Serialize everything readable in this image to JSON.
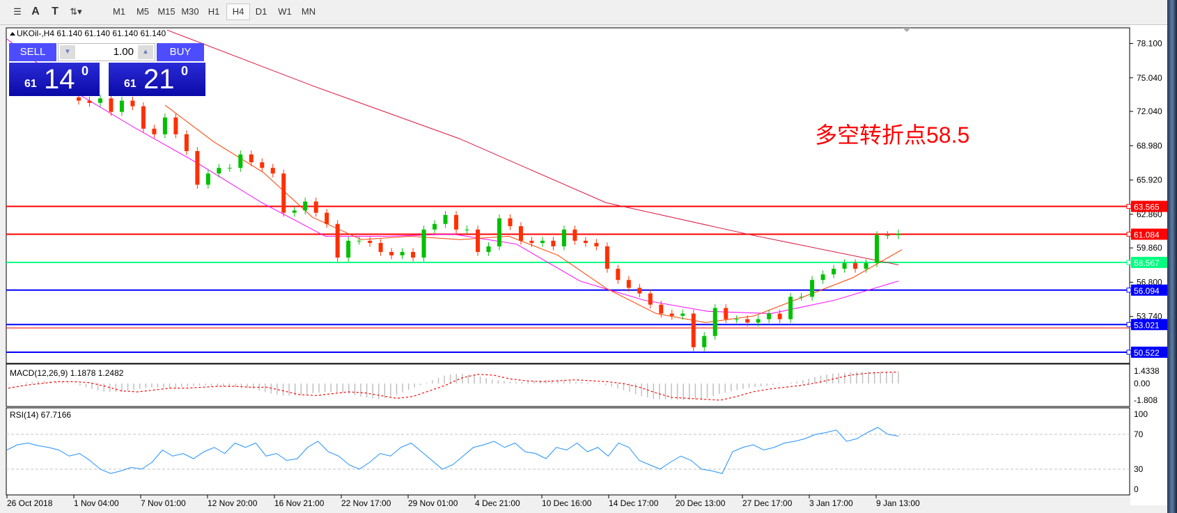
{
  "toolbar": {
    "tools": [
      {
        "icon": "fibo-icon",
        "label": ""
      },
      {
        "icon": "text-icon",
        "label": "A"
      },
      {
        "icon": "text-label-icon",
        "label": "T"
      },
      {
        "icon": "arrows-icon",
        "label": ""
      }
    ],
    "timeframes": [
      "M1",
      "M5",
      "M15",
      "M30",
      "H1",
      "H4",
      "D1",
      "W1",
      "MN"
    ],
    "active_timeframe": "H4"
  },
  "chart": {
    "header": "UKOil-,H4  61.140 61.140 61.140 61.140",
    "annotation": "多空转折点58.5",
    "annotation_color": "#ff0000",
    "trade": {
      "sell_label": "SELL",
      "buy_label": "BUY",
      "lot": "1.00",
      "sell_small": "61",
      "sell_big": "14",
      "sell_sup": "0",
      "buy_small": "61",
      "buy_big": "21",
      "buy_sup": "0"
    }
  },
  "chart_data": {
    "type": "candlestick",
    "symbol": "UKOil-",
    "timeframe": "H4",
    "ylim": [
      50.522,
      79.3
    ],
    "y_ticks": [
      "78.100",
      "75.040",
      "72.040",
      "68.980",
      "65.920",
      "62.860",
      "59.860",
      "56.800",
      "53.740"
    ],
    "x_ticks": [
      "26 Oct 2018",
      "1 Nov 04:00",
      "7 Nov 01:00",
      "12 Nov 20:00",
      "16 Nov 21:00",
      "22 Nov 17:00",
      "29 Nov 01:00",
      "4 Dec 21:00",
      "10 Dec 16:00",
      "14 Dec 17:00",
      "20 Dec 13:00",
      "27 Dec 17:00",
      "3 Jan 17:00",
      "9 Jan 13:00"
    ],
    "closes": [
      73.0,
      72.8,
      73.2,
      72.0,
      73.0,
      72.5,
      70.5,
      70.0,
      71.5,
      70.0,
      68.5,
      65.5,
      66.5,
      67.0,
      67.0,
      68.2,
      67.5,
      67.0,
      66.5,
      63.0,
      63.2,
      64.0,
      63.0,
      62.0,
      59.0,
      60.5,
      60.5,
      60.3,
      59.5,
      59.2,
      59.5,
      59.0,
      61.5,
      62.0,
      62.8,
      61.5,
      61.5,
      59.5,
      60.0,
      62.5,
      61.8,
      60.5,
      60.3,
      60.5,
      60.0,
      61.5,
      60.5,
      60.3,
      60.0,
      58.0,
      57.0,
      56.3,
      55.8,
      54.8,
      54.0,
      53.8,
      54.0,
      51.0,
      52.0,
      54.5,
      53.5,
      53.5,
      53.2,
      53.5,
      54.0,
      53.5,
      55.5,
      55.5,
      57.0,
      57.5,
      58.0,
      58.5,
      58.0,
      58.5,
      61.0,
      61.0,
      61.14
    ],
    "ma_slow": [
      79.3,
      74.3,
      69.6,
      63.9,
      61.0,
      58.35
    ],
    "ma_mid": [
      78.5,
      74.0,
      70.6,
      67.4,
      63.9,
      60.9,
      60.9,
      61.1,
      60.2,
      56.9,
      55.2,
      54.2,
      54.0,
      55.2,
      56.9
    ],
    "ma_fast": [
      72.6,
      69.3,
      66.6,
      62.6,
      60.6,
      60.9,
      60.6,
      60.9,
      59.2,
      56.2,
      54.0,
      53.2,
      53.8,
      55.5,
      57.2,
      59.7
    ],
    "levels": [
      {
        "value": 63.565,
        "label": "63.565",
        "color": "#ff0000"
      },
      {
        "value": 61.084,
        "label": "61.084",
        "color": "#ff0000"
      },
      {
        "value": 58.567,
        "label": "58.567",
        "color": "#00ff7f"
      },
      {
        "value": 56.094,
        "label": "56.094",
        "color": "#0000ff"
      },
      {
        "value": 53.021,
        "label": "53.021",
        "color": "#0000ff"
      },
      {
        "value": 52.72,
        "label": "",
        "color": "#ff0000"
      },
      {
        "value": 50.522,
        "label": "50.522",
        "color": "#0000ff"
      }
    ],
    "colors": {
      "bull": "#00c000",
      "bear": "#ff3000",
      "ma_fast": "#ff4000",
      "ma_mid": "#ff00ff",
      "ma_slow": "#dc143c"
    },
    "macd": {
      "label": "MACD(12,26,9) 1.1878 1.2482",
      "ticks": [
        "1.4338",
        "0.00",
        "-1.808"
      ],
      "main": [
        -0.1,
        0.1,
        0.3,
        0.2,
        0.0,
        -0.5,
        -0.9,
        -0.9,
        -0.6,
        -0.4,
        -0.5,
        -0.3,
        -0.2,
        -0.3,
        -0.4,
        -0.5,
        -1.0,
        -1.3,
        -1.3,
        -1.0,
        -0.9,
        -1.1,
        -1.5,
        -1.7,
        -1.2,
        -0.5,
        0.2,
        0.9,
        1.1,
        0.8,
        0.4,
        0.2,
        0.2,
        0.4,
        0.4,
        0.2,
        0.1,
        -0.2,
        -0.7,
        -1.3,
        -1.7,
        -1.7,
        -1.8,
        -1.7,
        -1.1,
        -0.7,
        -0.4,
        -0.2,
        0.0,
        0.3,
        0.8,
        1.1,
        1.2,
        1.3,
        1.3,
        1.19
      ],
      "signal": [
        -0.5,
        -0.2,
        0.0,
        0.2,
        0.2,
        0.1,
        -0.3,
        -0.8,
        -0.9,
        -0.7,
        -0.5,
        -0.5,
        -0.4,
        -0.3,
        -0.3,
        -0.4,
        -0.4,
        -0.8,
        -1.2,
        -1.3,
        -1.1,
        -0.9,
        -1.0,
        -1.3,
        -1.6,
        -1.4,
        -0.8,
        -0.2,
        0.6,
        1.0,
        0.9,
        0.5,
        0.3,
        0.2,
        0.3,
        0.4,
        0.3,
        0.2,
        0.0,
        -0.4,
        -1.0,
        -1.5,
        -1.6,
        -1.7,
        -1.8,
        -1.4,
        -0.9,
        -0.6,
        -0.4,
        -0.2,
        0.1,
        0.5,
        0.9,
        1.1,
        1.2,
        1.25
      ]
    },
    "rsi": {
      "label": "RSI(14) 67.7166",
      "ticks": [
        "100",
        "70",
        "30",
        "0"
      ],
      "levels": [
        70,
        30
      ],
      "values": [
        52,
        58,
        60,
        57,
        55,
        52,
        45,
        48,
        40,
        30,
        25,
        28,
        32,
        30,
        38,
        52,
        45,
        48,
        42,
        50,
        55,
        48,
        60,
        55,
        60,
        45,
        48,
        40,
        42,
        55,
        62,
        50,
        45,
        35,
        30,
        38,
        48,
        45,
        55,
        60,
        50,
        40,
        30,
        35,
        45,
        55,
        58,
        62,
        55,
        60,
        50,
        48,
        42,
        55,
        52,
        60,
        50,
        55,
        45,
        60,
        55,
        40,
        35,
        30,
        38,
        45,
        40,
        30,
        28,
        25,
        50,
        55,
        58,
        52,
        55,
        60,
        62,
        65,
        70,
        72,
        75,
        62,
        65,
        72,
        78,
        70,
        68
      ]
    }
  }
}
